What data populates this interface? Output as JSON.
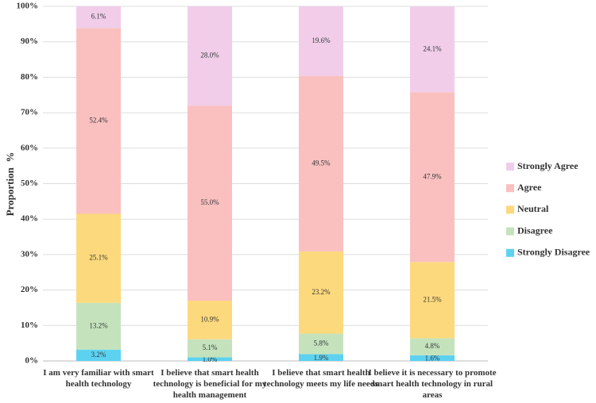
{
  "chart_data": {
    "type": "stacked_bar",
    "y_label": "Proportion  %",
    "categories": [
      "I am very familiar with smart health technology",
      "I believe that smart health technology is beneficial for my health management",
      "I believe that smart health technology meets my life needs",
      "I believe it is necessary to promote smart health technology in rural areas"
    ],
    "series": [
      {
        "name": "Strongly Disagree",
        "color": "#5cd2f0",
        "values": [
          3.2,
          1.0,
          1.9,
          1.6
        ],
        "value_labels": [
          "3.2%",
          "1.0%",
          "1.9%",
          "1.6%"
        ]
      },
      {
        "name": "Disagree",
        "color": "#c4e3bd",
        "values": [
          13.2,
          5.1,
          5.8,
          4.8
        ],
        "value_labels": [
          "13.2%",
          "5.1%",
          "5.8%",
          "4.8%"
        ]
      },
      {
        "name": "Neutral",
        "color": "#fcd97c",
        "values": [
          25.1,
          10.9,
          23.2,
          21.5
        ],
        "value_labels": [
          "25.1%",
          "10.9%",
          "23.2%",
          "21.5%"
        ]
      },
      {
        "name": "Agree",
        "color": "#fac0c0",
        "values": [
          52.4,
          55.0,
          49.5,
          47.9
        ],
        "value_labels": [
          "52.4%",
          "55.0%",
          "49.5%",
          "47.9%"
        ]
      },
      {
        "name": "Strongly Agree",
        "color": "#f1cdea",
        "values": [
          6.1,
          28.0,
          19.6,
          24.1
        ],
        "value_labels": [
          "6.1%",
          "28.0%",
          "19.6%",
          "24.1%"
        ]
      }
    ],
    "ylim": [
      0,
      100
    ],
    "yticks": [
      {
        "value": 0,
        "label": "0%"
      },
      {
        "value": 10,
        "label": "10%"
      },
      {
        "value": 20,
        "label": "20%"
      },
      {
        "value": 30,
        "label": "30%"
      },
      {
        "value": 40,
        "label": "40%"
      },
      {
        "value": 50,
        "label": "50%"
      },
      {
        "value": 60,
        "label": "60%"
      },
      {
        "value": 70,
        "label": "70%"
      },
      {
        "value": 80,
        "label": "80%"
      },
      {
        "value": 90,
        "label": "90%"
      },
      {
        "value": 100,
        "label": "100%"
      }
    ],
    "grid": true,
    "legend": "right"
  }
}
